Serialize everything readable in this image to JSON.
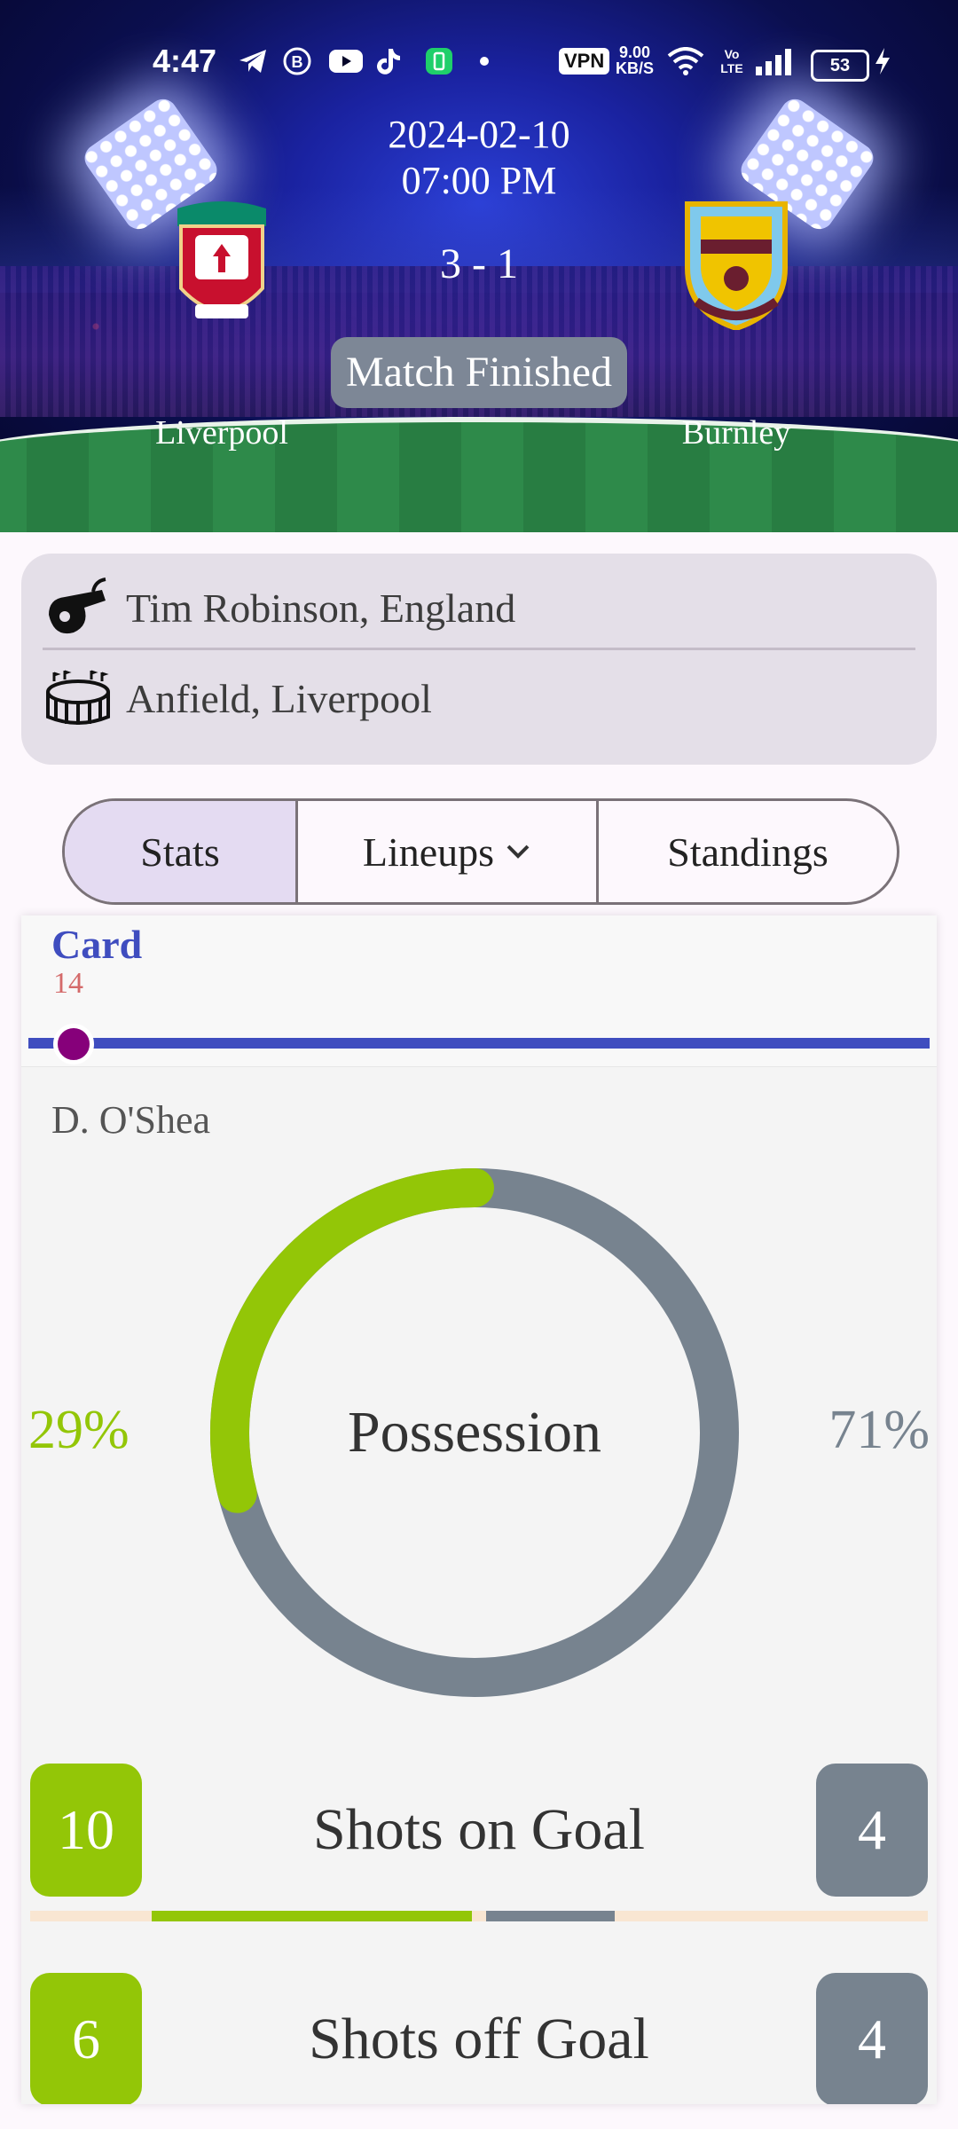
{
  "status_bar": {
    "time": "4:47",
    "vpn": "VPN",
    "net_speed_value": "9.00",
    "net_speed_unit": "KB/S",
    "battery": "53",
    "icons": [
      "telegram-icon",
      "b-icon",
      "youtube-icon",
      "tiktok-icon",
      "battery-saver-icon",
      "dot-icon",
      "wifi-icon",
      "volte-icon",
      "signal-icon",
      "charging-icon"
    ]
  },
  "match": {
    "date": "2024-02-10",
    "time": "07:00 PM",
    "score": "3 - 1",
    "status": "Match Finished",
    "home_team": "Liverpool",
    "away_team": "Burnley",
    "home_score": 3,
    "away_score": 1
  },
  "info": {
    "referee": "Tim Robinson, England",
    "venue": "Anfield, Liverpool"
  },
  "tabs": [
    {
      "label": "Stats",
      "active": true
    },
    {
      "label": "Lineups",
      "active": false
    },
    {
      "label": "Standings",
      "active": false
    }
  ],
  "event": {
    "type": "Card",
    "minute": "14",
    "player": "D. O'Shea",
    "timeline_position": 0.05
  },
  "possession": {
    "label": "Possession",
    "home": "29%",
    "away": "71%",
    "home_value": 29,
    "away_value": 71
  },
  "stats": [
    {
      "label": "Shots on Goal",
      "home": "10",
      "away": "4"
    },
    {
      "label": "Shots off Goal",
      "home": "6",
      "away": "4"
    }
  ],
  "colors": {
    "home": "#93c607",
    "away": "#77838f",
    "accent": "#3f4dbf",
    "card_marker": "#86007a"
  }
}
